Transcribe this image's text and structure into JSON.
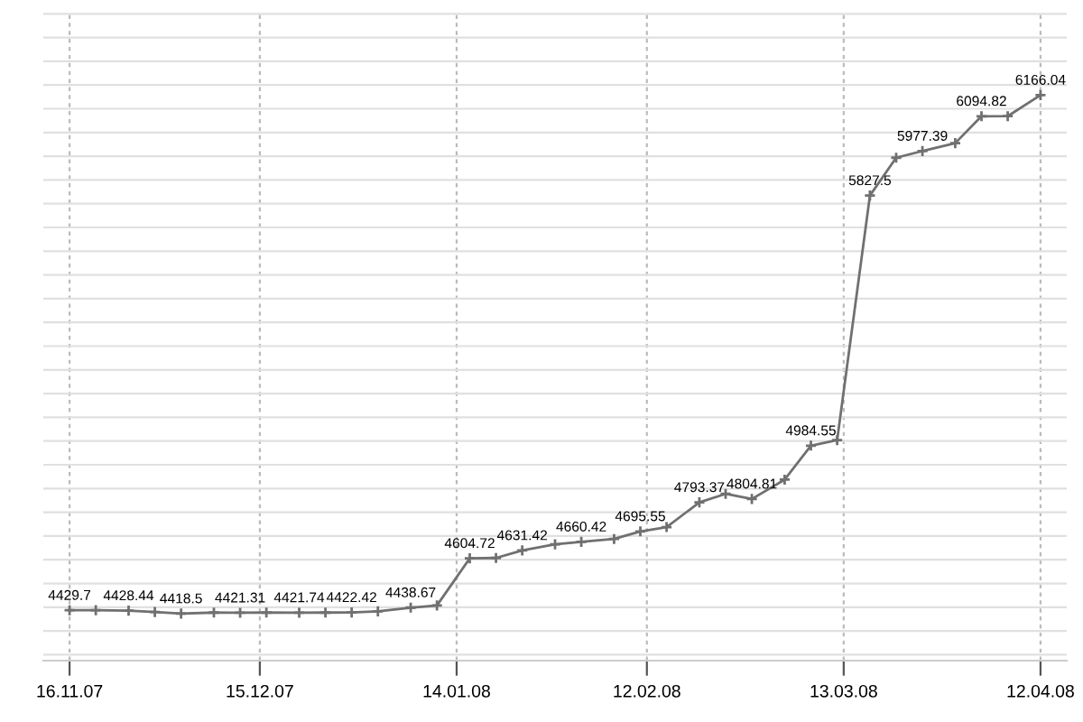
{
  "chart_data": {
    "type": "line",
    "x": [
      "2007-11-16",
      "2007-11-20",
      "2007-11-25",
      "2007-11-29",
      "2007-12-03",
      "2007-12-08",
      "2007-12-12",
      "2007-12-16",
      "2007-12-21",
      "2007-12-25",
      "2007-12-29",
      "2008-01-02",
      "2008-01-07",
      "2008-01-11",
      "2008-01-16",
      "2008-01-20",
      "2008-01-24",
      "2008-01-29",
      "2008-02-02",
      "2008-02-07",
      "2008-02-11",
      "2008-02-15",
      "2008-02-20",
      "2008-02-24",
      "2008-02-28",
      "2008-03-04",
      "2008-03-08",
      "2008-03-12",
      "2008-03-17",
      "2008-03-21",
      "2008-03-25",
      "2008-03-30",
      "2008-04-03",
      "2008-04-07",
      "2008-04-12"
    ],
    "series": [
      {
        "color": "#707070",
        "values": [
          4429.7,
          4430,
          4428.44,
          4424,
          4418.5,
          4422,
          4421.31,
          4422,
          4421.74,
          4422,
          4422.42,
          4426,
          4438.67,
          4446,
          4604.72,
          4606,
          4631.42,
          4652,
          4660.42,
          4670,
          4695.55,
          4710,
          4793.37,
          4822,
          4804.81,
          4870,
          4984.55,
          5003,
          5827.5,
          5955,
          5977.39,
          6004,
          6094.82,
          6095,
          6166.04
        ],
        "value_labels": [
          "4429.7",
          null,
          "4428.44",
          null,
          "4418.5",
          null,
          "4421.31",
          null,
          "4421.74",
          null,
          "4422.42",
          null,
          "4438.67",
          null,
          "4604.72",
          null,
          "4631.42",
          null,
          "4660.42",
          null,
          "4695.55",
          null,
          "4793.37",
          null,
          "4804.81",
          null,
          "4984.55",
          null,
          "5827.5",
          null,
          "5977.39",
          null,
          "6094.82",
          null,
          "6166.04"
        ]
      }
    ],
    "xlim": [
      "2007-11-12",
      "2008-04-16"
    ],
    "xticks": [
      {
        "value": "2007-11-16",
        "label": "16.11.07"
      },
      {
        "value": "2007-12-15",
        "label": "15.12.07"
      },
      {
        "value": "2008-01-14",
        "label": "14.01.08"
      },
      {
        "value": "2008-02-12",
        "label": "12.02.08"
      },
      {
        "value": "2008-03-13",
        "label": "13.03.08"
      },
      {
        "value": "2008-04-12",
        "label": "12.04.08"
      }
    ],
    "ylim": [
      4260,
      6450
    ],
    "yticks": [
      {
        "value": 4280,
        "label": null
      },
      {
        "value": 4360,
        "label": null
      },
      {
        "value": 4440,
        "label": null
      },
      {
        "value": 4520,
        "label": null
      },
      {
        "value": 4600,
        "label": null
      },
      {
        "value": 4680,
        "label": null
      },
      {
        "value": 4760,
        "label": null
      },
      {
        "value": 4840,
        "label": null
      },
      {
        "value": 4920,
        "label": null
      },
      {
        "value": 5000,
        "label": null
      },
      {
        "value": 5080,
        "label": null
      },
      {
        "value": 5160,
        "label": null
      },
      {
        "value": 5240,
        "label": null
      },
      {
        "value": 5320,
        "label": null
      },
      {
        "value": 5400,
        "label": null
      },
      {
        "value": 5480,
        "label": null
      },
      {
        "value": 5560,
        "label": null
      },
      {
        "value": 5640,
        "label": null
      },
      {
        "value": 5720,
        "label": null
      },
      {
        "value": 5800,
        "label": null
      },
      {
        "value": 5880,
        "label": null
      },
      {
        "value": 5960,
        "label": null
      },
      {
        "value": 6040,
        "label": null
      },
      {
        "value": 6120,
        "label": null
      },
      {
        "value": 6200,
        "label": null
      },
      {
        "value": 6280,
        "label": null
      },
      {
        "value": 6360,
        "label": null
      },
      {
        "value": 6440,
        "label": null
      }
    ],
    "tick_labels": "x",
    "grid": true,
    "marker": "cross",
    "line_style": "solid"
  }
}
